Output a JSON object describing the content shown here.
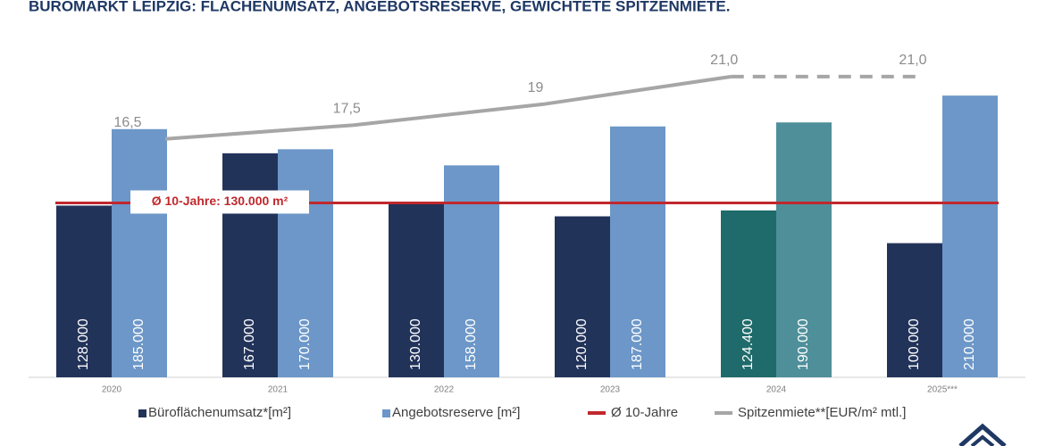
{
  "chart_data": {
    "type": "bar",
    "title": "BÜROMARKT LEIPZIG: FLÄCHENUMSATZ, ANGEBOTSRESERVE, GEWICHTETE SPITZENMIETE.",
    "categories": [
      "2020",
      "2021",
      "2022",
      "2023",
      "2024",
      "2025***"
    ],
    "series": [
      {
        "name": "Büroflächenumsatz*[m²]",
        "color": "#22335a",
        "colors": [
          "#22335a",
          "#22335a",
          "#22335a",
          "#22335a",
          "#1f6a6a",
          "#22335a"
        ],
        "values": [
          128000,
          167000,
          130000,
          120000,
          124400,
          100000
        ],
        "value_labels": [
          "128.000",
          "167.000",
          "130.000",
          "120.000",
          "124.400",
          "100.000"
        ]
      },
      {
        "name": "Angebotsreserve [m²]",
        "color": "#6c97c8",
        "colors": [
          "#6c97c8",
          "#6c97c8",
          "#6c97c8",
          "#6c97c8",
          "#4e8f9a",
          "#6c97c8"
        ],
        "values": [
          185000,
          170000,
          158000,
          187000,
          190000,
          210000
        ],
        "value_labels": [
          "185.000",
          "170.000",
          "158.000",
          "187.000",
          "190.000",
          "210.000"
        ]
      }
    ],
    "average": {
      "name": "Ø 10-Jahre",
      "label": "Ø 10-Jahre: 130.000 m²",
      "value": 130000,
      "color": "#c0282d"
    },
    "line": {
      "type": "line",
      "name": "Spitzenmiete**[EUR/m² mtl.]",
      "color": "#a6a6a6",
      "axis": "y2",
      "values": [
        16.5,
        17.5,
        19,
        21,
        21
      ],
      "value_labels": [
        "16,5",
        "17,5",
        "19",
        "21,0",
        "21,0"
      ],
      "dashed_from": 3
    },
    "ylim": [
      0,
      250000
    ],
    "y2lim": [
      -0.7,
      23.5
    ]
  }
}
